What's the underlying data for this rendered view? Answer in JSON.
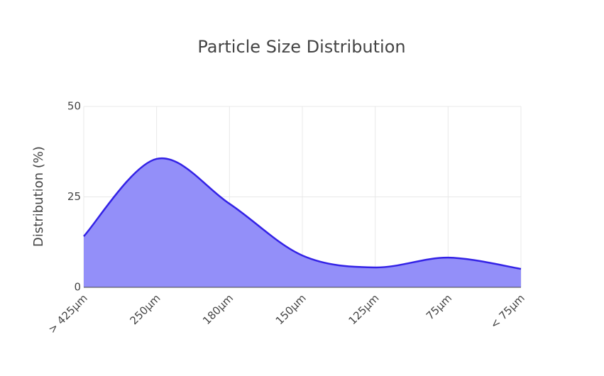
{
  "chart_data": {
    "type": "area",
    "title": "Particle Size Distribution",
    "y_label": "Distribution (%)",
    "categories": [
      "> 425µm",
      "250µm",
      "180µm",
      "150µm",
      "125µm",
      "75µm",
      "< 75µm"
    ],
    "values": [
      14.1,
      35.5,
      23.1,
      8.8,
      5.5,
      8.2,
      5.1
    ],
    "color": "#3322e6",
    "fill_color": "#938ff9",
    "ylim": [
      0,
      50
    ],
    "yticks": [
      0,
      25,
      50
    ],
    "grid": true
  }
}
